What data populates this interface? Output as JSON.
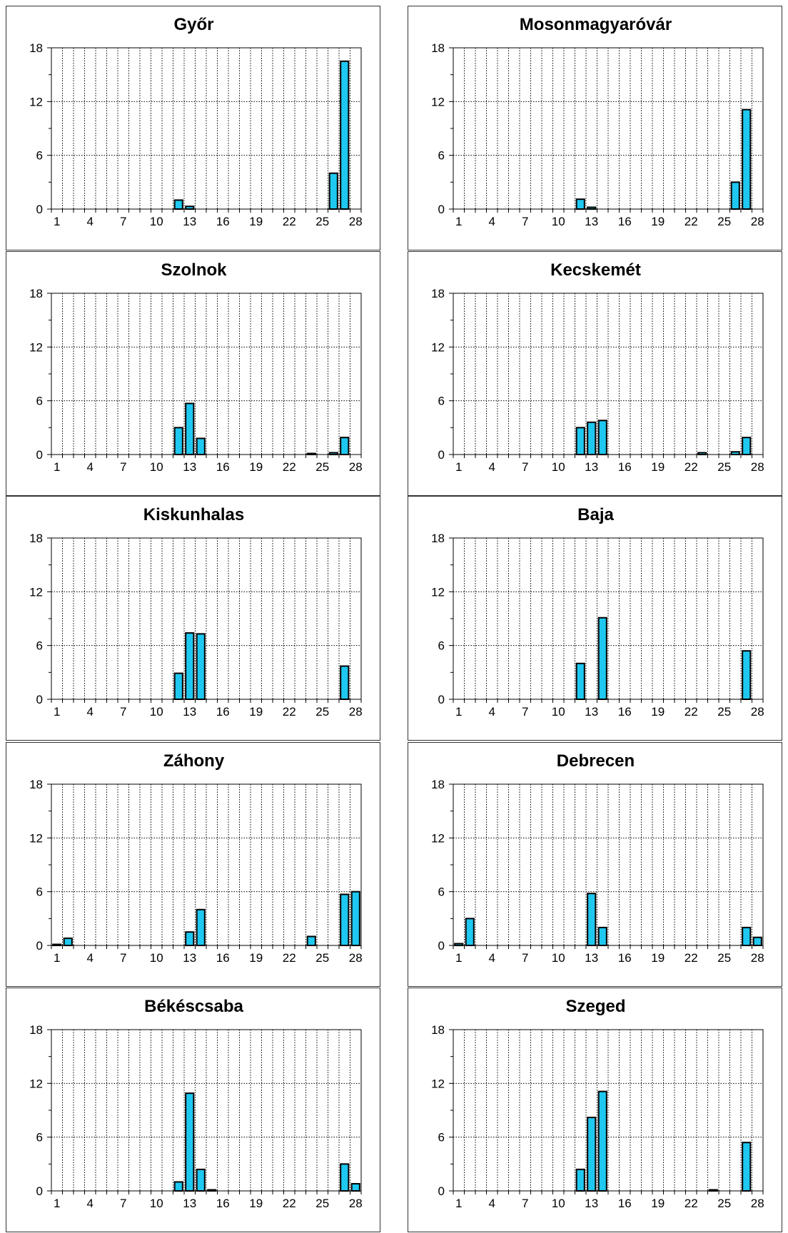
{
  "colors": {
    "bar_fill": "#1EC8F0",
    "bar_stroke": "#000000",
    "grid": "#000000",
    "axis": "#000000"
  },
  "chart_data": [
    {
      "type": "bar",
      "title": "Győr",
      "ylim": [
        0,
        18
      ],
      "yticks": [
        0,
        6,
        12,
        18
      ],
      "xticks": [
        1,
        4,
        7,
        10,
        13,
        16,
        19,
        22,
        25,
        28
      ],
      "x_range": [
        1,
        28
      ],
      "grid": "dotted",
      "values": {
        "12": 1.0,
        "13": 0.3,
        "26": 4.0,
        "27": 16.5
      }
    },
    {
      "type": "bar",
      "title": "Mosonmagyaróvár",
      "ylim": [
        0,
        18
      ],
      "yticks": [
        0,
        6,
        12,
        18
      ],
      "xticks": [
        1,
        4,
        7,
        10,
        13,
        16,
        19,
        22,
        25,
        28
      ],
      "x_range": [
        1,
        28
      ],
      "grid": "dotted",
      "values": {
        "12": 1.1,
        "13": 0.2,
        "26": 3.0,
        "27": 11.1
      }
    },
    {
      "type": "bar",
      "title": "Szolnok",
      "ylim": [
        0,
        18
      ],
      "yticks": [
        0,
        6,
        12,
        18
      ],
      "xticks": [
        1,
        4,
        7,
        10,
        13,
        16,
        19,
        22,
        25,
        28
      ],
      "x_range": [
        1,
        28
      ],
      "grid": "dotted",
      "values": {
        "12": 3.0,
        "13": 5.7,
        "14": 1.8,
        "24": 0.1,
        "26": 0.2,
        "27": 1.9
      }
    },
    {
      "type": "bar",
      "title": "Kecskemét",
      "ylim": [
        0,
        18
      ],
      "yticks": [
        0,
        6,
        12,
        18
      ],
      "xticks": [
        1,
        4,
        7,
        10,
        13,
        16,
        19,
        22,
        25,
        28
      ],
      "x_range": [
        1,
        28
      ],
      "grid": "dotted",
      "values": {
        "12": 3.0,
        "13": 3.6,
        "14": 3.8,
        "23": 0.2,
        "26": 0.3,
        "27": 1.9
      }
    },
    {
      "type": "bar",
      "title": "Kiskunhalas",
      "ylim": [
        0,
        18
      ],
      "yticks": [
        0,
        6,
        12,
        18
      ],
      "xticks": [
        1,
        4,
        7,
        10,
        13,
        16,
        19,
        22,
        25,
        28
      ],
      "x_range": [
        1,
        28
      ],
      "grid": "dotted",
      "values": {
        "12": 2.9,
        "13": 7.4,
        "14": 7.3,
        "27": 3.7
      }
    },
    {
      "type": "bar",
      "title": "Baja",
      "ylim": [
        0,
        18
      ],
      "yticks": [
        0,
        6,
        12,
        18
      ],
      "xticks": [
        1,
        4,
        7,
        10,
        13,
        16,
        19,
        22,
        25,
        28
      ],
      "x_range": [
        1,
        28
      ],
      "grid": "dotted",
      "values": {
        "12": 4.0,
        "14": 9.1,
        "27": 5.4
      }
    },
    {
      "type": "bar",
      "title": "Záhony",
      "ylim": [
        0,
        18
      ],
      "yticks": [
        0,
        6,
        12,
        18
      ],
      "xticks": [
        1,
        4,
        7,
        10,
        13,
        16,
        19,
        22,
        25,
        28
      ],
      "x_range": [
        1,
        28
      ],
      "grid": "dotted",
      "values": {
        "1": 0.1,
        "2": 0.8,
        "13": 1.5,
        "14": 4.0,
        "24": 1.0,
        "27": 5.7,
        "28": 6.0
      }
    },
    {
      "type": "bar",
      "title": "Debrecen",
      "ylim": [
        0,
        18
      ],
      "yticks": [
        0,
        6,
        12,
        18
      ],
      "xticks": [
        1,
        4,
        7,
        10,
        13,
        16,
        19,
        22,
        25,
        28
      ],
      "x_range": [
        1,
        28
      ],
      "grid": "dotted",
      "values": {
        "1": 0.2,
        "2": 3.0,
        "13": 5.8,
        "14": 2.0,
        "27": 2.0,
        "28": 0.9
      }
    },
    {
      "type": "bar",
      "title": "Békéscsaba",
      "ylim": [
        0,
        18
      ],
      "yticks": [
        0,
        6,
        12,
        18
      ],
      "xticks": [
        1,
        4,
        7,
        10,
        13,
        16,
        19,
        22,
        25,
        28
      ],
      "x_range": [
        1,
        28
      ],
      "grid": "dotted",
      "values": {
        "12": 1.0,
        "13": 10.9,
        "14": 2.4,
        "15": 0.1,
        "27": 3.0,
        "28": 0.8
      }
    },
    {
      "type": "bar",
      "title": "Szeged",
      "ylim": [
        0,
        18
      ],
      "yticks": [
        0,
        6,
        12,
        18
      ],
      "xticks": [
        1,
        4,
        7,
        10,
        13,
        16,
        19,
        22,
        25,
        28
      ],
      "x_range": [
        1,
        28
      ],
      "grid": "dotted",
      "values": {
        "12": 2.4,
        "13": 8.2,
        "14": 11.1,
        "24": 0.1,
        "27": 5.4
      }
    }
  ]
}
